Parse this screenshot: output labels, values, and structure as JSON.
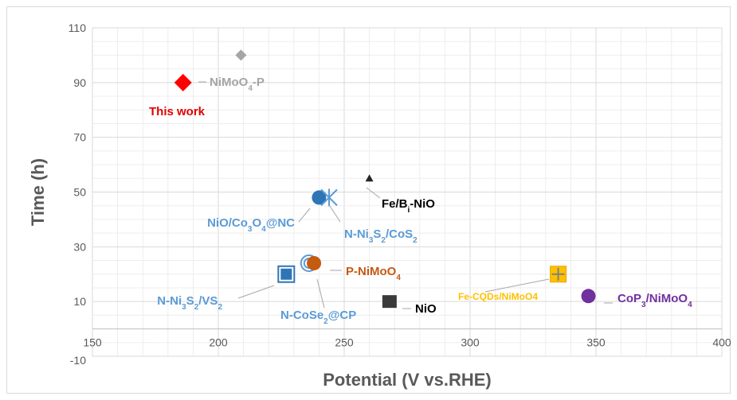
{
  "chart_data": {
    "type": "scatter",
    "xlabel": "Potential (V vs.RHE)",
    "ylabel": "Time (h)",
    "xlim": [
      150,
      400
    ],
    "ylim": [
      -10,
      110
    ],
    "x_ticks": [
      "150",
      "200",
      "250",
      "300",
      "350",
      "400"
    ],
    "y_ticks": [
      "-10",
      "10",
      "30",
      "50",
      "70",
      "90",
      "110"
    ],
    "grid": true,
    "points": [
      {
        "id": "this-work",
        "label": "This work",
        "x": 186,
        "y": 90,
        "marker": "diamond",
        "color": "#ff0000",
        "label_color": "#e00000"
      },
      {
        "id": "nimoo4-p",
        "label_parts": [
          "NiMoO",
          "4",
          "-P"
        ],
        "x": 209,
        "y": 100,
        "marker": "diamond",
        "color": "#a5a5a5",
        "label_color": "#a5a5a5"
      },
      {
        "id": "fe-bi-nio",
        "label_parts": [
          "Fe/B",
          "i",
          "-NiO"
        ],
        "x": 260,
        "y": 55,
        "marker": "triangle",
        "color": "#262626",
        "label_color": "#000000"
      },
      {
        "id": "nio-co3o4-nc",
        "label_parts": [
          "NiO/Co",
          "3",
          "O",
          "4",
          "@NC"
        ],
        "x": 240,
        "y": 48,
        "marker": "circle",
        "color": "#2e75b6",
        "label_color": "#5b9bd5"
      },
      {
        "id": "n-ni3s2-cos2",
        "label_parts": [
          "N-Ni",
          "3",
          "S",
          "2",
          "/CoS",
          "2"
        ],
        "x": 244,
        "y": 48,
        "marker": "asterisk",
        "color": "#5b9bd5",
        "label_color": "#5b9bd5"
      },
      {
        "id": "n-ni3s2-vs2",
        "label_parts": [
          "N-Ni",
          "3",
          "S",
          "2",
          "/VS",
          "2"
        ],
        "x": 227,
        "y": 20,
        "marker": "square-boxed",
        "color": "#2e75b6",
        "label_color": "#5b9bd5"
      },
      {
        "id": "n-cose2-cp",
        "label_parts": [
          "N-CoSe",
          "2",
          "@CP"
        ],
        "x": 236,
        "y": 24,
        "marker": "double-circle",
        "color": "#5b9bd5",
        "label_color": "#5b9bd5"
      },
      {
        "id": "p-nimoo4",
        "label_parts": [
          "P-NiMoO",
          "4"
        ],
        "x": 238,
        "y": 24,
        "marker": "circle",
        "color": "#c55a11",
        "label_color": "#c55a11"
      },
      {
        "id": "nio",
        "label": "NiO",
        "x": 268,
        "y": 10,
        "marker": "square",
        "color": "#3a3a3a",
        "label_color": "#000000"
      },
      {
        "id": "fe-cqds-nimoo4",
        "label": "Fe-CQDs/NiMoO4",
        "x": 335,
        "y": 20,
        "marker": "square-plus",
        "color": "#ffc000",
        "label_color": "#ffc000"
      },
      {
        "id": "cop3-nimoo4",
        "label_parts": [
          "CoP",
          "3",
          "/NiMoO",
          "4"
        ],
        "x": 347,
        "y": 12,
        "marker": "circle",
        "color": "#7030a0",
        "label_color": "#7030a0"
      }
    ]
  }
}
